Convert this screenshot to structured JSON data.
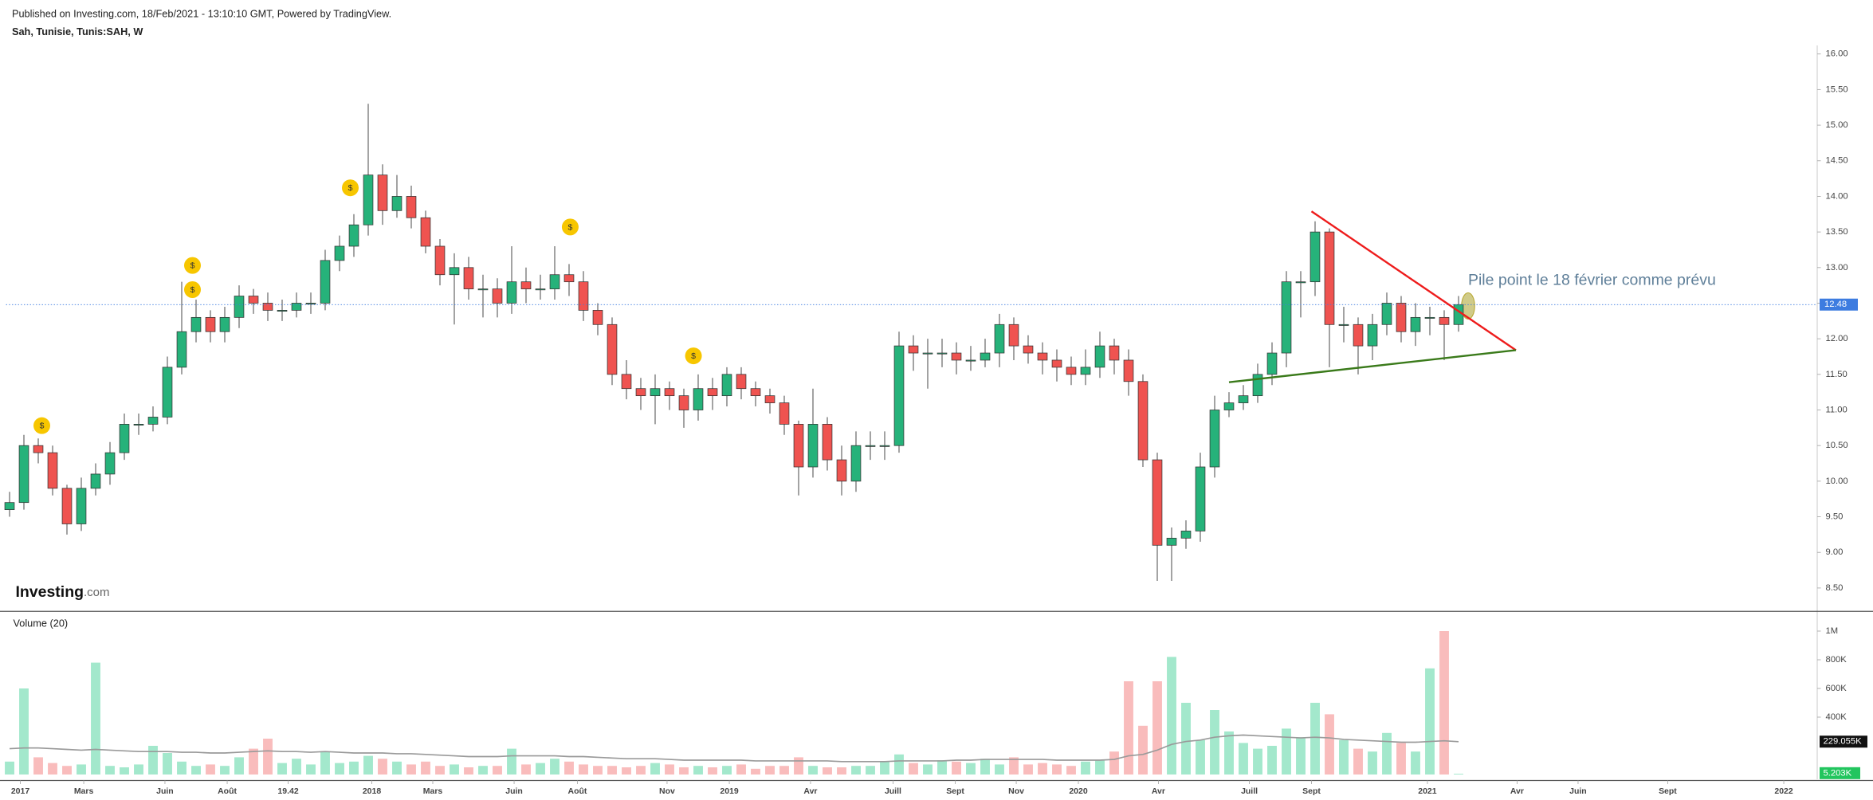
{
  "header": {
    "published": "Published on Investing.com, 18/Feb/2021 - 13:10:10 GMT, Powered by TradingView.",
    "logo": [
      "Investing",
      ".com"
    ]
  },
  "chart_data": [
    {
      "type": "candlestick",
      "title": "Sah, Tunisie, Tunis:SAH, W",
      "up_color": "#26b27a",
      "down_color": "#ef5350",
      "grid": false,
      "xlim": [
        -0.25,
        126
      ],
      "ylim": [
        8.18,
        16.12
      ],
      "yticks": [
        {
          "value": 8.5,
          "label": "8.50"
        },
        {
          "value": 9,
          "label": "9.00"
        },
        {
          "value": 9.5,
          "label": "9.50"
        },
        {
          "value": 10,
          "label": "10.00"
        },
        {
          "value": 10.5,
          "label": "10.50"
        },
        {
          "value": 11,
          "label": "11.00"
        },
        {
          "value": 11.5,
          "label": "11.50"
        },
        {
          "value": 12,
          "label": "12.00"
        },
        {
          "value": 12.5,
          "label": "12.50"
        },
        {
          "value": 13,
          "label": "13.00"
        },
        {
          "value": 13.5,
          "label": "13.50"
        },
        {
          "value": 14,
          "label": "14.00"
        },
        {
          "value": 14.5,
          "label": "14.50"
        },
        {
          "value": 15,
          "label": "15.00"
        },
        {
          "value": 15.5,
          "label": "15.50"
        },
        {
          "value": 16,
          "label": "16.00"
        }
      ],
      "open": [
        9.6,
        9.7,
        10.5,
        10.4,
        9.9,
        9.4,
        9.9,
        10.1,
        10.4,
        10.8,
        10.8,
        10.9,
        11.6,
        12.1,
        12.3,
        12.1,
        12.3,
        12.6,
        12.5,
        12.4,
        12.4,
        12.5,
        12.5,
        13.1,
        13.3,
        13.6,
        14.3,
        13.8,
        14.0,
        13.7,
        13.3,
        12.9,
        13.0,
        12.7,
        12.7,
        12.5,
        12.8,
        12.7,
        12.7,
        12.9,
        12.8,
        12.4,
        12.2,
        11.5,
        11.3,
        11.2,
        11.3,
        11.2,
        11.0,
        11.3,
        11.2,
        11.5,
        11.3,
        11.2,
        11.1,
        10.8,
        10.2,
        10.8,
        10.3,
        10.0,
        10.5,
        10.5,
        10.5,
        11.9,
        11.8,
        11.8,
        11.8,
        11.7,
        11.7,
        11.8,
        12.2,
        11.9,
        11.8,
        11.7,
        11.6,
        11.5,
        11.6,
        11.9,
        11.7,
        11.4,
        10.3,
        9.1,
        9.2,
        9.3,
        10.2,
        11.0,
        11.1,
        11.2,
        11.5,
        11.8,
        12.8,
        12.8,
        13.5,
        12.2,
        12.2,
        11.9,
        12.2,
        12.5,
        12.1,
        12.3,
        12.3,
        12.2
      ],
      "high": [
        9.85,
        10.65,
        10.6,
        10.5,
        9.95,
        10.05,
        10.25,
        10.55,
        10.95,
        10.95,
        11.05,
        11.75,
        12.8,
        12.55,
        12.4,
        12.45,
        12.75,
        12.7,
        12.65,
        12.55,
        12.65,
        12.65,
        13.25,
        13.45,
        13.75,
        15.3,
        14.45,
        14.3,
        14.15,
        13.8,
        13.4,
        13.2,
        13.15,
        12.9,
        12.85,
        13.3,
        13.0,
        12.9,
        13.3,
        13.05,
        12.95,
        12.5,
        12.3,
        11.7,
        11.45,
        11.5,
        11.4,
        11.3,
        11.5,
        11.45,
        11.6,
        11.6,
        11.4,
        11.3,
        11.2,
        10.85,
        11.3,
        10.9,
        10.5,
        10.7,
        10.7,
        10.7,
        12.1,
        12.05,
        12.0,
        12.0,
        11.95,
        11.9,
        12.0,
        12.35,
        12.3,
        12.05,
        11.95,
        11.85,
        11.75,
        11.85,
        12.1,
        12.0,
        11.85,
        11.5,
        10.4,
        9.35,
        9.45,
        10.4,
        11.2,
        11.25,
        11.35,
        11.65,
        11.95,
        12.95,
        12.95,
        13.65,
        13.55,
        12.45,
        12.3,
        12.35,
        12.65,
        12.6,
        12.5,
        12.45,
        12.4,
        12.6
      ],
      "low": [
        9.5,
        9.6,
        10.25,
        9.8,
        9.25,
        9.3,
        9.8,
        9.95,
        10.3,
        10.65,
        10.7,
        10.8,
        11.5,
        11.95,
        11.95,
        11.95,
        12.15,
        12.35,
        12.25,
        12.25,
        12.3,
        12.35,
        12.4,
        12.95,
        13.15,
        13.45,
        13.6,
        13.7,
        13.55,
        13.2,
        12.75,
        12.2,
        12.55,
        12.3,
        12.3,
        12.35,
        12.5,
        12.55,
        12.55,
        12.6,
        12.25,
        12.05,
        11.35,
        11.15,
        11.0,
        10.8,
        11.0,
        10.75,
        10.85,
        11.0,
        11.05,
        11.15,
        11.05,
        10.95,
        10.65,
        9.8,
        10.05,
        10.15,
        9.8,
        9.85,
        10.3,
        10.3,
        10.4,
        11.55,
        11.3,
        11.6,
        11.5,
        11.55,
        11.6,
        11.6,
        11.7,
        11.65,
        11.5,
        11.4,
        11.35,
        11.35,
        11.45,
        11.5,
        11.2,
        10.2,
        8.6,
        8.6,
        9.05,
        9.15,
        10.05,
        10.9,
        11.0,
        11.1,
        11.35,
        11.6,
        12.3,
        12.6,
        11.6,
        11.95,
        11.5,
        11.7,
        12.05,
        11.95,
        11.9,
        12.05,
        11.7,
        12.1
      ],
      "close": [
        9.7,
        10.5,
        10.4,
        9.9,
        9.4,
        9.9,
        10.1,
        10.4,
        10.8,
        10.8,
        10.9,
        11.6,
        12.1,
        12.3,
        12.1,
        12.3,
        12.6,
        12.5,
        12.4,
        12.4,
        12.5,
        12.5,
        13.1,
        13.3,
        13.6,
        14.3,
        13.8,
        14.0,
        13.7,
        13.3,
        12.9,
        13.0,
        12.7,
        12.7,
        12.5,
        12.8,
        12.7,
        12.7,
        12.9,
        12.8,
        12.4,
        12.2,
        11.5,
        11.3,
        11.2,
        11.3,
        11.2,
        11.0,
        11.3,
        11.2,
        11.5,
        11.3,
        11.2,
        11.1,
        10.8,
        10.2,
        10.8,
        10.3,
        10.0,
        10.5,
        10.5,
        10.5,
        11.9,
        11.8,
        11.8,
        11.8,
        11.7,
        11.7,
        11.8,
        12.2,
        11.9,
        11.8,
        11.7,
        11.6,
        11.5,
        11.6,
        11.9,
        11.7,
        11.4,
        10.3,
        9.1,
        9.2,
        9.3,
        10.2,
        11.0,
        11.1,
        11.2,
        11.5,
        11.8,
        12.8,
        12.8,
        13.5,
        12.2,
        12.2,
        11.9,
        12.2,
        12.5,
        12.1,
        12.3,
        12.3,
        12.2,
        12.48
      ],
      "price_line": {
        "value": 12.48,
        "label": "12.48",
        "color": "#3d7ce0"
      },
      "events": [
        {
          "x": 2.25,
          "y": 10.78,
          "label": "$"
        },
        {
          "x": 12.75,
          "y": 13.03,
          "label": "$"
        },
        {
          "x": 12.75,
          "y": 12.69,
          "label": "$"
        },
        {
          "x": 23.75,
          "y": 14.12,
          "label": "$"
        },
        {
          "x": 39.08,
          "y": 13.57,
          "label": "$"
        },
        {
          "x": 47.67,
          "y": 11.76,
          "label": "$"
        }
      ],
      "trendlines": [
        {
          "color": "#ee1c1c",
          "x": [
            90.75,
            105
          ],
          "y": [
            13.79,
            11.84
          ]
        },
        {
          "color": "#3a7a1a",
          "x": [
            85,
            105
          ],
          "y": [
            11.39,
            11.84
          ]
        }
      ],
      "annotation": "Pile point le 18 février comme prévu"
    },
    {
      "type": "bar",
      "title": "Volume (20)",
      "up_color": "#a3e8cc",
      "down_color": "#f9bcbc",
      "xlim": [
        -0.25,
        126
      ],
      "ylim": [
        0,
        1100000
      ],
      "yticks": [
        {
          "value": 400000,
          "label": "400K"
        },
        {
          "value": 600000,
          "label": "600K"
        },
        {
          "value": 800000,
          "label": "800K"
        },
        {
          "value": 1000000,
          "label": "1M"
        }
      ],
      "xticks": [
        {
          "value": 0.75,
          "label": "2017"
        },
        {
          "value": 5.17,
          "label": "Mars"
        },
        {
          "value": 10.83,
          "label": "Juin"
        },
        {
          "value": 15.17,
          "label": "Août"
        },
        19.42,
        {
          "value": 25.25,
          "label": "2018"
        },
        {
          "value": 29.5,
          "label": "Mars"
        },
        {
          "value": 35.17,
          "label": "Juin"
        },
        {
          "value": 39.58,
          "label": "Août"
        },
        {
          "value": 45.83,
          "label": "Nov"
        },
        {
          "value": 50.17,
          "label": "2019"
        },
        {
          "value": 55.83,
          "label": "Avr"
        },
        {
          "value": 61.58,
          "label": "Juill"
        },
        {
          "value": 65.92,
          "label": "Sept"
        },
        {
          "value": 70.17,
          "label": "Nov"
        },
        {
          "value": 74.5,
          "label": "2020"
        },
        {
          "value": 80.08,
          "label": "Avr"
        },
        {
          "value": 86.42,
          "label": "Juill"
        },
        {
          "value": 90.75,
          "label": "Sept"
        },
        {
          "value": 98.83,
          "label": "2021"
        },
        {
          "value": 105.08,
          "label": "Avr"
        },
        {
          "value": 109.33,
          "label": "Juin"
        },
        {
          "value": 115.58,
          "label": "Sept"
        },
        {
          "value": 123.67,
          "label": "2022"
        }
      ],
      "values": [
        90000,
        600000,
        120000,
        80000,
        60000,
        70000,
        780000,
        60000,
        50000,
        70000,
        200000,
        150000,
        90000,
        60000,
        70000,
        60000,
        120000,
        180000,
        250000,
        80000,
        110000,
        70000,
        160000,
        80000,
        90000,
        130000,
        110000,
        90000,
        70000,
        90000,
        60000,
        70000,
        50000,
        60000,
        60000,
        180000,
        70000,
        80000,
        110000,
        90000,
        70000,
        60000,
        60000,
        50000,
        60000,
        80000,
        70000,
        50000,
        60000,
        50000,
        60000,
        70000,
        40000,
        60000,
        60000,
        120000,
        60000,
        50000,
        50000,
        60000,
        60000,
        90000,
        140000,
        80000,
        70000,
        100000,
        90000,
        80000,
        110000,
        70000,
        120000,
        70000,
        80000,
        70000,
        60000,
        90000,
        100000,
        160000,
        650000,
        340000,
        650000,
        820000,
        500000,
        240000,
        450000,
        300000,
        220000,
        180000,
        200000,
        320000,
        260000,
        500000,
        420000,
        240000,
        180000,
        160000,
        290000,
        220000,
        160000,
        740000,
        1000000,
        5203
      ],
      "last_label": "5.203K",
      "last_color": "#22c55e",
      "ma": {
        "color": "#9a9a9a",
        "last_label": "229.055K",
        "values": [
          180000,
          185000,
          185000,
          180000,
          175000,
          170000,
          175000,
          170000,
          165000,
          160000,
          160000,
          160000,
          155000,
          155000,
          150000,
          150000,
          155000,
          160000,
          165000,
          160000,
          160000,
          155000,
          160000,
          155000,
          150000,
          150000,
          150000,
          145000,
          145000,
          140000,
          135000,
          130000,
          125000,
          125000,
          125000,
          130000,
          130000,
          130000,
          130000,
          125000,
          125000,
          120000,
          115000,
          110000,
          110000,
          110000,
          105000,
          100000,
          100000,
          100000,
          100000,
          100000,
          95000,
          95000,
          95000,
          95000,
          95000,
          95000,
          90000,
          90000,
          90000,
          90000,
          95000,
          95000,
          95000,
          95000,
          100000,
          100000,
          105000,
          105000,
          105000,
          105000,
          105000,
          100000,
          100000,
          100000,
          100000,
          105000,
          130000,
          140000,
          170000,
          210000,
          230000,
          240000,
          260000,
          270000,
          275000,
          270000,
          265000,
          260000,
          255000,
          260000,
          255000,
          245000,
          240000,
          235000,
          230000,
          225000,
          225000,
          230000,
          235000,
          229055
        ]
      }
    }
  ]
}
